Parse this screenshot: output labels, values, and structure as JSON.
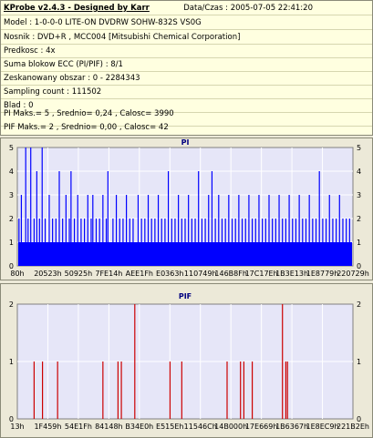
{
  "header": {
    "title": "KProbe v2.4.3 - Designed by Karr",
    "date": "Data/Czas : 2005-07-05 22:41:20"
  },
  "info_rows": [
    "Model : 1-0-0-0 LITE-ON DVDRW SOHW-832S  VS0G",
    "Nosnik : DVD+R , MCC004 [Mitsubishi Chemical Corporation]",
    "Predkosc : 4x",
    "Suma blokow ECC (PI/PIF) : 8/1",
    "Zeskanowany obszar : 0 - 2284343",
    "Sampling count : 111502",
    "Blad : 0",
    "PI Maks.= 5 , Srednio= 0,24 , Calosc= 3990",
    "PIF Maks.= 2 , Srednio= 0,00 , Calosc= 42"
  ],
  "colors": {
    "plot_bg": "#e6e6f8",
    "grid": "#ffffff",
    "pi_bar": "#0000ff",
    "pif_bar": "#cc0000",
    "title": "#000080"
  },
  "chart_data": [
    {
      "type": "bar",
      "title": "PI",
      "ylim": [
        0,
        5
      ],
      "yticks": [
        0,
        1,
        2,
        3,
        4,
        5
      ],
      "x_tick_labels": [
        "80h",
        "20523h",
        "50925h",
        "7FE14h",
        "AEE1Fh",
        "E0363h",
        "110749h",
        "146B8Fh",
        "17C17Eh",
        "1B3E13h",
        "1E8779h",
        "220729h"
      ],
      "grid": true,
      "baseline_value": 1,
      "spikes": [
        {
          "x": 0.005,
          "y": 2
        },
        {
          "x": 0.012,
          "y": 3
        },
        {
          "x": 0.025,
          "y": 5
        },
        {
          "x": 0.032,
          "y": 2
        },
        {
          "x": 0.04,
          "y": 5
        },
        {
          "x": 0.05,
          "y": 2
        },
        {
          "x": 0.058,
          "y": 4
        },
        {
          "x": 0.066,
          "y": 2
        },
        {
          "x": 0.074,
          "y": 5
        },
        {
          "x": 0.083,
          "y": 2
        },
        {
          "x": 0.095,
          "y": 3
        },
        {
          "x": 0.105,
          "y": 2
        },
        {
          "x": 0.115,
          "y": 2
        },
        {
          "x": 0.125,
          "y": 4
        },
        {
          "x": 0.135,
          "y": 2
        },
        {
          "x": 0.145,
          "y": 3
        },
        {
          "x": 0.155,
          "y": 2
        },
        {
          "x": 0.16,
          "y": 4
        },
        {
          "x": 0.17,
          "y": 2
        },
        {
          "x": 0.18,
          "y": 3
        },
        {
          "x": 0.19,
          "y": 2
        },
        {
          "x": 0.2,
          "y": 2
        },
        {
          "x": 0.21,
          "y": 3
        },
        {
          "x": 0.22,
          "y": 2
        },
        {
          "x": 0.225,
          "y": 3
        },
        {
          "x": 0.235,
          "y": 2
        },
        {
          "x": 0.245,
          "y": 2
        },
        {
          "x": 0.255,
          "y": 3
        },
        {
          "x": 0.265,
          "y": 2
        },
        {
          "x": 0.27,
          "y": 4
        },
        {
          "x": 0.285,
          "y": 2
        },
        {
          "x": 0.295,
          "y": 3
        },
        {
          "x": 0.305,
          "y": 2
        },
        {
          "x": 0.315,
          "y": 2
        },
        {
          "x": 0.325,
          "y": 3
        },
        {
          "x": 0.335,
          "y": 2
        },
        {
          "x": 0.345,
          "y": 2
        },
        {
          "x": 0.36,
          "y": 3
        },
        {
          "x": 0.37,
          "y": 2
        },
        {
          "x": 0.38,
          "y": 2
        },
        {
          "x": 0.39,
          "y": 3
        },
        {
          "x": 0.4,
          "y": 2
        },
        {
          "x": 0.41,
          "y": 2
        },
        {
          "x": 0.42,
          "y": 3
        },
        {
          "x": 0.43,
          "y": 2
        },
        {
          "x": 0.44,
          "y": 2
        },
        {
          "x": 0.45,
          "y": 4
        },
        {
          "x": 0.46,
          "y": 2
        },
        {
          "x": 0.47,
          "y": 2
        },
        {
          "x": 0.48,
          "y": 3
        },
        {
          "x": 0.49,
          "y": 2
        },
        {
          "x": 0.5,
          "y": 2
        },
        {
          "x": 0.51,
          "y": 3
        },
        {
          "x": 0.52,
          "y": 2
        },
        {
          "x": 0.53,
          "y": 2
        },
        {
          "x": 0.54,
          "y": 4
        },
        {
          "x": 0.55,
          "y": 2
        },
        {
          "x": 0.56,
          "y": 2
        },
        {
          "x": 0.57,
          "y": 3
        },
        {
          "x": 0.58,
          "y": 4
        },
        {
          "x": 0.59,
          "y": 2
        },
        {
          "x": 0.6,
          "y": 3
        },
        {
          "x": 0.61,
          "y": 2
        },
        {
          "x": 0.62,
          "y": 2
        },
        {
          "x": 0.63,
          "y": 3
        },
        {
          "x": 0.64,
          "y": 2
        },
        {
          "x": 0.65,
          "y": 2
        },
        {
          "x": 0.66,
          "y": 3
        },
        {
          "x": 0.67,
          "y": 2
        },
        {
          "x": 0.68,
          "y": 2
        },
        {
          "x": 0.69,
          "y": 3
        },
        {
          "x": 0.7,
          "y": 2
        },
        {
          "x": 0.71,
          "y": 2
        },
        {
          "x": 0.72,
          "y": 3
        },
        {
          "x": 0.73,
          "y": 2
        },
        {
          "x": 0.74,
          "y": 2
        },
        {
          "x": 0.75,
          "y": 3
        },
        {
          "x": 0.76,
          "y": 2
        },
        {
          "x": 0.77,
          "y": 2
        },
        {
          "x": 0.78,
          "y": 3
        },
        {
          "x": 0.79,
          "y": 2
        },
        {
          "x": 0.8,
          "y": 2
        },
        {
          "x": 0.81,
          "y": 3
        },
        {
          "x": 0.82,
          "y": 2
        },
        {
          "x": 0.83,
          "y": 2
        },
        {
          "x": 0.84,
          "y": 3
        },
        {
          "x": 0.85,
          "y": 2
        },
        {
          "x": 0.86,
          "y": 2
        },
        {
          "x": 0.87,
          "y": 3
        },
        {
          "x": 0.88,
          "y": 2
        },
        {
          "x": 0.89,
          "y": 2
        },
        {
          "x": 0.9,
          "y": 4
        },
        {
          "x": 0.91,
          "y": 2
        },
        {
          "x": 0.92,
          "y": 2
        },
        {
          "x": 0.93,
          "y": 3
        },
        {
          "x": 0.94,
          "y": 2
        },
        {
          "x": 0.95,
          "y": 2
        },
        {
          "x": 0.96,
          "y": 3
        },
        {
          "x": 0.97,
          "y": 2
        },
        {
          "x": 0.98,
          "y": 2
        },
        {
          "x": 0.99,
          "y": 2
        }
      ]
    },
    {
      "type": "bar",
      "title": "PIF",
      "ylim": [
        0,
        2
      ],
      "yticks": [
        0,
        1,
        2
      ],
      "x_tick_labels": [
        "13h",
        "1F459h",
        "54E1Fh",
        "84148h",
        "B34E0h",
        "E515Eh",
        "11546Ch",
        "14B000h",
        "17E669h",
        "1B6367h",
        "1E8EC9h",
        "221B2Eh"
      ],
      "grid": true,
      "spikes": [
        {
          "x": 0.05,
          "y": 1
        },
        {
          "x": 0.075,
          "y": 1
        },
        {
          "x": 0.12,
          "y": 1
        },
        {
          "x": 0.255,
          "y": 1
        },
        {
          "x": 0.3,
          "y": 1
        },
        {
          "x": 0.31,
          "y": 1
        },
        {
          "x": 0.35,
          "y": 2
        },
        {
          "x": 0.455,
          "y": 1
        },
        {
          "x": 0.49,
          "y": 1
        },
        {
          "x": 0.625,
          "y": 1
        },
        {
          "x": 0.665,
          "y": 1
        },
        {
          "x": 0.675,
          "y": 1
        },
        {
          "x": 0.7,
          "y": 1
        },
        {
          "x": 0.79,
          "y": 2
        },
        {
          "x": 0.8,
          "y": 1
        },
        {
          "x": 0.805,
          "y": 1
        }
      ]
    }
  ]
}
